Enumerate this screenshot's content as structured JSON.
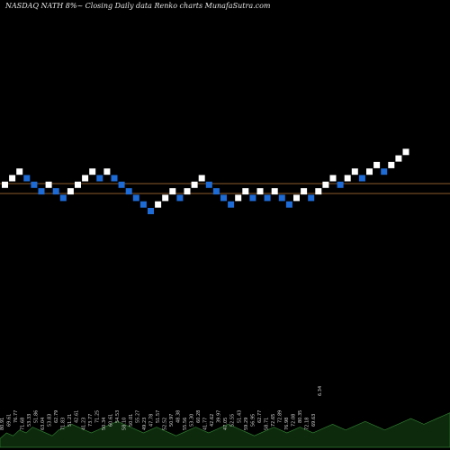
{
  "header": {
    "title": "NASDAQ NATH 8%~ Closing Daily data Renko charts MunafaSutra.com"
  },
  "chart_data": {
    "type": "renko",
    "title": "NASDAQ NATH 8%~ Closing Daily data Renko charts MunafaSutra.com",
    "bricks": [
      {
        "level": 6,
        "dir": "up"
      },
      {
        "level": 7,
        "dir": "up"
      },
      {
        "level": 8,
        "dir": "up"
      },
      {
        "level": 7,
        "dir": "down"
      },
      {
        "level": 6,
        "dir": "down"
      },
      {
        "level": 5,
        "dir": "down"
      },
      {
        "level": 6,
        "dir": "up"
      },
      {
        "level": 5,
        "dir": "down"
      },
      {
        "level": 4,
        "dir": "down"
      },
      {
        "level": 5,
        "dir": "up"
      },
      {
        "level": 6,
        "dir": "up"
      },
      {
        "level": 7,
        "dir": "up"
      },
      {
        "level": 8,
        "dir": "up"
      },
      {
        "level": 7,
        "dir": "down"
      },
      {
        "level": 8,
        "dir": "up"
      },
      {
        "level": 7,
        "dir": "down"
      },
      {
        "level": 6,
        "dir": "down"
      },
      {
        "level": 5,
        "dir": "down"
      },
      {
        "level": 4,
        "dir": "down"
      },
      {
        "level": 3,
        "dir": "down"
      },
      {
        "level": 2,
        "dir": "down"
      },
      {
        "level": 3,
        "dir": "up"
      },
      {
        "level": 4,
        "dir": "up"
      },
      {
        "level": 5,
        "dir": "up"
      },
      {
        "level": 4,
        "dir": "down"
      },
      {
        "level": 5,
        "dir": "up"
      },
      {
        "level": 6,
        "dir": "up"
      },
      {
        "level": 7,
        "dir": "up"
      },
      {
        "level": 6,
        "dir": "down"
      },
      {
        "level": 5,
        "dir": "down"
      },
      {
        "level": 4,
        "dir": "down"
      },
      {
        "level": 3,
        "dir": "down"
      },
      {
        "level": 4,
        "dir": "up"
      },
      {
        "level": 5,
        "dir": "up"
      },
      {
        "level": 4,
        "dir": "down"
      },
      {
        "level": 5,
        "dir": "up"
      },
      {
        "level": 4,
        "dir": "down"
      },
      {
        "level": 5,
        "dir": "up"
      },
      {
        "level": 4,
        "dir": "down"
      },
      {
        "level": 3,
        "dir": "down"
      },
      {
        "level": 4,
        "dir": "up"
      },
      {
        "level": 5,
        "dir": "up"
      },
      {
        "level": 4,
        "dir": "down"
      },
      {
        "level": 5,
        "dir": "up"
      },
      {
        "level": 6,
        "dir": "up"
      },
      {
        "level": 7,
        "dir": "up"
      },
      {
        "level": 6,
        "dir": "down"
      },
      {
        "level": 7,
        "dir": "up"
      },
      {
        "level": 8,
        "dir": "up"
      },
      {
        "level": 7,
        "dir": "down"
      },
      {
        "level": 8,
        "dir": "up"
      },
      {
        "level": 9,
        "dir": "up"
      },
      {
        "level": 8,
        "dir": "down"
      },
      {
        "level": 9,
        "dir": "up"
      },
      {
        "level": 10,
        "dir": "up"
      },
      {
        "level": 11,
        "dir": "up"
      }
    ],
    "reference_lines": [
      {
        "name": "upper-line"
      },
      {
        "name": "lower-line"
      }
    ],
    "volume": [
      3,
      5,
      4,
      6,
      5,
      7,
      6,
      5,
      4,
      6,
      7,
      8,
      7,
      6,
      5,
      6,
      7,
      8,
      9,
      8,
      7,
      6,
      5,
      6,
      7,
      6,
      5,
      4,
      5,
      6,
      7,
      6,
      5,
      6,
      7,
      8,
      7,
      6,
      5,
      4,
      5,
      6,
      7,
      6,
      5,
      6,
      7,
      6,
      5,
      6,
      7,
      8,
      7,
      6,
      7,
      8,
      9,
      8,
      7,
      6,
      7,
      8,
      9,
      10,
      9,
      8,
      9,
      10,
      11,
      12
    ],
    "volume_labels": [
      "80.91",
      "69.61",
      "76.77",
      "71.68",
      "53.33",
      "51.86",
      "63.04",
      "53.83",
      "62.79",
      "71.83",
      "51.21",
      "42.61",
      "41.23",
      "73.77",
      "71.25",
      "50.34",
      "60.61",
      "54.53",
      "58.10",
      "50.01",
      "55.27",
      "49.23",
      "47.78",
      "51.57",
      "52.52",
      "50.97",
      "48.38",
      "55.56",
      "53.30",
      "60.28",
      "41.77",
      "42.62",
      "39.97",
      "47.05",
      "52.55",
      "51.43",
      "59.29",
      "56.95",
      "62.77",
      "58.71",
      "72.65",
      "72.89",
      "76.98",
      "72.08",
      "80.35",
      "72.18",
      "69.63"
    ],
    "volume_last_label": "6.34",
    "colors": {
      "up": "#ffffff",
      "down": "#1e6bd6",
      "reference_line": "#8a5a2b",
      "volume_fill": "#0d2a0d",
      "volume_stroke": "#2f7a2f"
    },
    "grid": false
  }
}
